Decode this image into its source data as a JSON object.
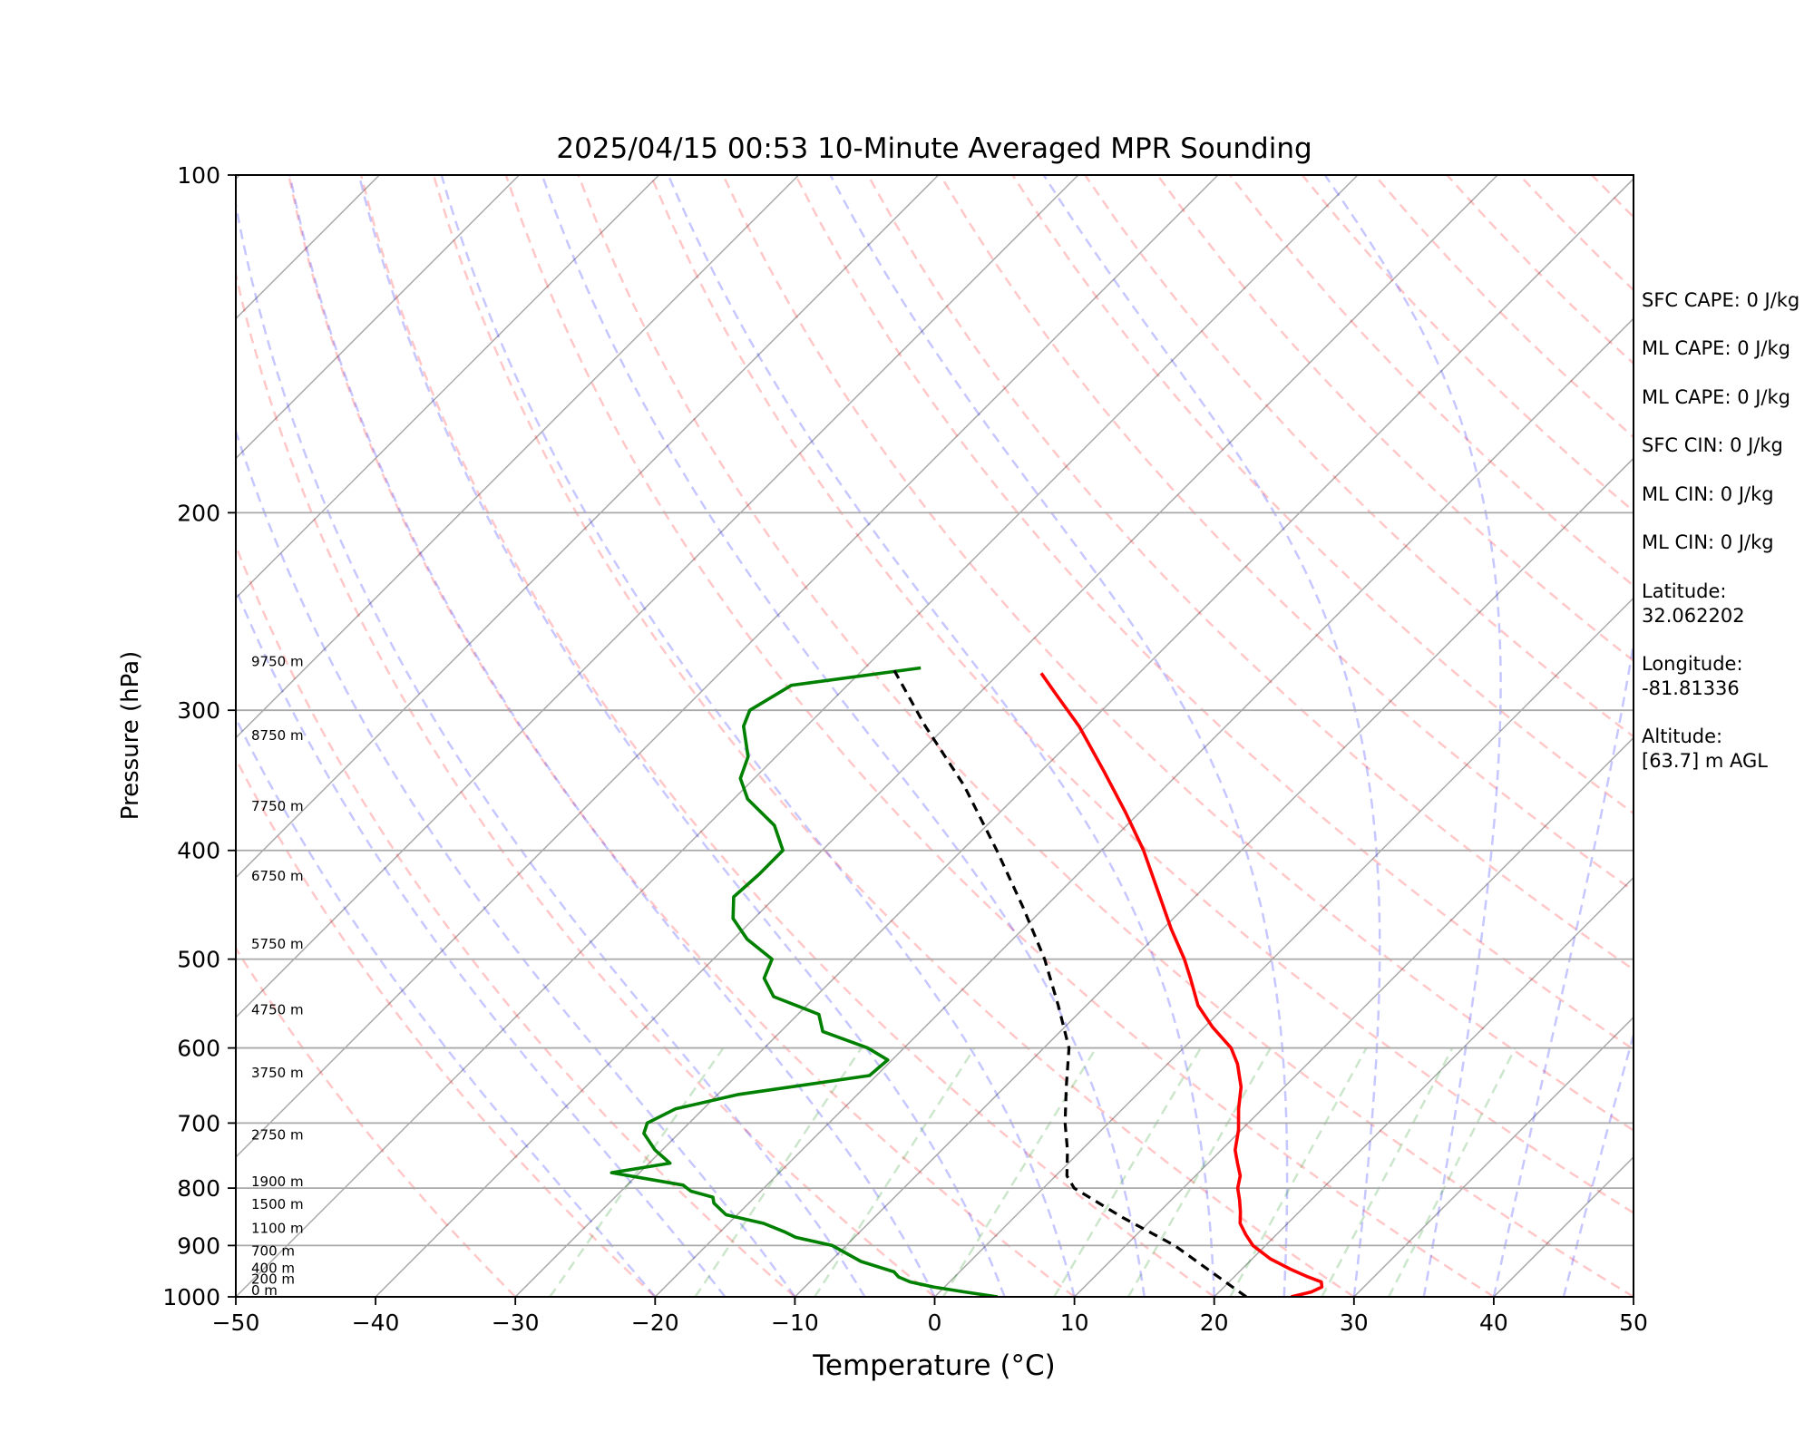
{
  "chart_data": {
    "type": "line",
    "title": "2025/04/15 00:53 10-Minute Averaged MPR Sounding",
    "xlabel": "Temperature (°C)",
    "ylabel": "Pressure (hPa)",
    "xlim": [
      -50,
      50
    ],
    "ylim": [
      1000,
      100
    ],
    "y_scale": "log",
    "skew": "skew-T log-P",
    "grid": true,
    "x_ticks": [
      "−50",
      "−40",
      "−30",
      "−20",
      "−10",
      "0",
      "10",
      "20",
      "30",
      "40",
      "50"
    ],
    "y_ticks": [
      "100",
      "200",
      "300",
      "400",
      "500",
      "600",
      "700",
      "800",
      "900",
      "1000"
    ],
    "height_labels": [
      {
        "p": 1000,
        "text": "0 m"
      },
      {
        "p": 977,
        "text": "200 m"
      },
      {
        "p": 955,
        "text": "400 m"
      },
      {
        "p": 922,
        "text": "700 m"
      },
      {
        "p": 880,
        "text": "1100 m"
      },
      {
        "p": 838,
        "text": "1500 m"
      },
      {
        "p": 800,
        "text": "1900 m"
      },
      {
        "p": 727,
        "text": "2750 m"
      },
      {
        "p": 640,
        "text": "3750 m"
      },
      {
        "p": 562,
        "text": "4750 m"
      },
      {
        "p": 491,
        "text": "5750 m"
      },
      {
        "p": 427,
        "text": "6750 m"
      },
      {
        "p": 370,
        "text": "7750 m"
      },
      {
        "p": 320,
        "text": "8750 m"
      },
      {
        "p": 275,
        "text": "9750 m"
      }
    ],
    "series": [
      {
        "color": "#ff0000",
        "points": [
          [
            1000,
            25.5
          ],
          [
            990,
            26.6
          ],
          [
            980,
            27.0
          ],
          [
            970,
            26.6
          ],
          [
            960,
            25.3
          ],
          [
            945,
            23.5
          ],
          [
            925,
            21.3
          ],
          [
            900,
            19.1
          ],
          [
            880,
            17.8
          ],
          [
            860,
            16.6
          ],
          [
            840,
            15.8
          ],
          [
            820,
            14.9
          ],
          [
            800,
            13.9
          ],
          [
            780,
            13.2
          ],
          [
            760,
            12.1
          ],
          [
            740,
            11.0
          ],
          [
            710,
            9.8
          ],
          [
            680,
            8.3
          ],
          [
            650,
            6.9
          ],
          [
            620,
            5.0
          ],
          [
            600,
            3.4
          ],
          [
            575,
            0.6
          ],
          [
            550,
            -2.0
          ],
          [
            520,
            -4.5
          ],
          [
            500,
            -6.3
          ],
          [
            470,
            -9.4
          ],
          [
            440,
            -12.5
          ],
          [
            400,
            -17.0
          ],
          [
            370,
            -21.0
          ],
          [
            340,
            -25.5
          ],
          [
            310,
            -30.5
          ],
          [
            290,
            -34.5
          ],
          [
            278,
            -37.0
          ]
        ]
      },
      {
        "color": "#008000",
        "points": [
          [
            1000,
            4.5
          ],
          [
            990,
            1.8
          ],
          [
            980,
            -0.8
          ],
          [
            970,
            -2.8
          ],
          [
            960,
            -4.0
          ],
          [
            950,
            -4.7
          ],
          [
            930,
            -7.8
          ],
          [
            900,
            -11.0
          ],
          [
            885,
            -14.2
          ],
          [
            875,
            -15.4
          ],
          [
            860,
            -17.5
          ],
          [
            845,
            -20.8
          ],
          [
            825,
            -22.5
          ],
          [
            815,
            -23.0
          ],
          [
            805,
            -25.0
          ],
          [
            795,
            -26.0
          ],
          [
            775,
            -32.0
          ],
          [
            760,
            -28.5
          ],
          [
            740,
            -30.5
          ],
          [
            715,
            -32.5
          ],
          [
            700,
            -33.0
          ],
          [
            680,
            -32.0
          ],
          [
            660,
            -28.5
          ],
          [
            635,
            -20.5
          ],
          [
            615,
            -20.3
          ],
          [
            600,
            -22.6
          ],
          [
            580,
            -27.0
          ],
          [
            560,
            -28.5
          ],
          [
            540,
            -33.0
          ],
          [
            520,
            -35.0
          ],
          [
            500,
            -35.8
          ],
          [
            480,
            -39.0
          ],
          [
            460,
            -41.5
          ],
          [
            440,
            -43.0
          ],
          [
            420,
            -42.8
          ],
          [
            400,
            -42.8
          ],
          [
            380,
            -45.2
          ],
          [
            360,
            -49.0
          ],
          [
            345,
            -51.0
          ],
          [
            330,
            -52.0
          ],
          [
            310,
            -54.5
          ],
          [
            300,
            -55.2
          ],
          [
            285,
            -54.0
          ],
          [
            275,
            -46.0
          ]
        ]
      },
      {
        "color": "#000000",
        "style": "dashed",
        "points": [
          [
            1000,
            22.3
          ],
          [
            950,
            18.0
          ],
          [
            900,
            13.5
          ],
          [
            850,
            7.8
          ],
          [
            800,
            2.2
          ],
          [
            780,
            0.8
          ],
          [
            740,
            -1.0
          ],
          [
            700,
            -3.1
          ],
          [
            650,
            -5.6
          ],
          [
            600,
            -8.2
          ],
          [
            550,
            -12.0
          ],
          [
            500,
            -16.3
          ],
          [
            450,
            -21.5
          ],
          [
            400,
            -27.5
          ],
          [
            350,
            -34.5
          ],
          [
            310,
            -41.5
          ],
          [
            275,
            -48.0
          ]
        ]
      }
    ]
  },
  "stats": [
    "SFC CAPE: 0 J/kg",
    "ML CAPE: 0 J/kg",
    "ML CAPE: 0 J/kg",
    "SFC CIN: 0 J/kg",
    "ML CIN: 0 J/kg",
    "ML CIN: 0 J/kg"
  ],
  "location": {
    "latitude_label": "Latitude:",
    "latitude_value": "32.062202",
    "longitude_label": "Longitude:",
    "longitude_value": "-81.81336",
    "altitude_label": "Altitude:",
    "altitude_value": "[63.7] m AGL"
  }
}
